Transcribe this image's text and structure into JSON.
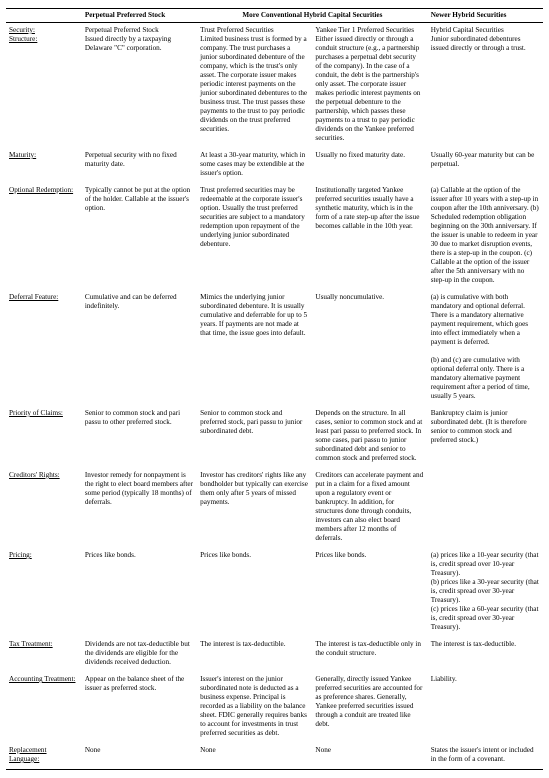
{
  "header": {
    "col1_label": "",
    "col2_label": "Perpetual Preferred Stock",
    "group_label": "More Conventional Hybrid Capital Securities",
    "col5_label": "Newer Hybrid Securities"
  },
  "rows": [
    {
      "label_a": "Security:",
      "label_b": "Structure:",
      "c1": "Perpetual Preferred Stock\nIssued directly by a taxpaying Delaware \"C\" corporation.",
      "c2": "Trust Preferred Securities\nLimited business trust is formed by a company. The trust purchases a junior subordinated debenture of the company, which is the trust's only asset. The corporate issuer makes periodic interest payments on the junior subordinated debentures to the business trust. The trust passes these payments to the trust to pay periodic dividends on the trust preferred securities.",
      "c3": "Yankee Tier 1 Preferred Securities\nEither issued directly or through a conduit structure (e.g., a partnership purchases a perpetual debt security of the company). In the case of a conduit, the debt is the partnership's only asset. The corporate issuer makes periodic interest payments on the perpetual debenture to the partnership, which passes these payments to a trust to pay periodic dividends on the Yankee preferred securities.",
      "c4": "Hybrid Capital Securities\nJunior subordinated debentures issued directly or through a trust."
    },
    {
      "label_a": "Maturity:",
      "c1": "Perpetual security with no fixed maturity date.",
      "c2": "At least a 30-year maturity, which in some cases may be extendible at the issuer's option.",
      "c3": "Usually no fixed maturity date.",
      "c4": "Usually 60-year maturity but can be perpetual."
    },
    {
      "label_a": "Optional Redemption:",
      "c1": "Typically cannot be put at the option of the holder. Callable at the issuer's option.",
      "c2": "Trust preferred securities may be redeemable at the corporate issuer's option. Usually the trust preferred securities are subject to a mandatory redemption upon repayment of the underlying junior subordinated debenture.",
      "c3": "Institutionally targeted Yankee preferred securities usually have a synthetic maturity, which is in the form of a rate step-up after the issue becomes callable in the 10th year.",
      "c4": "(a) Callable at the option of the issuer after 10 years with a step-up in coupon after the 10th anniversary. (b) Scheduled redemption obligation beginning on the 30th anniversary. If the issuer is unable to redeem in year 30 due to market disruption events, there is a step-up in the coupon. (c) Callable at the option of the issuer after the 5th anniversary with no step-up in the coupon."
    },
    {
      "label_a": "Deferral Feature:",
      "c1": "Cumulative and can be deferred indefinitely.",
      "c2": "Mimics the underlying junior subordinated debenture. It is usually cumulative and deferrable for up to 5 years. If payments are not made at that time, the issue goes into default.",
      "c3": "Usually noncumulative.",
      "c4": "(a) is cumulative with both mandatory and optional deferral. There is a mandatory alternative payment requirement, which goes into effect immediately when a payment is deferred.\n\n(b) and (c) are cumulative with optional deferral only. There is a mandatory alternative payment requirement after a period of time, usually 5 years."
    },
    {
      "label_a": "Priority of Claims:",
      "c1": "Senior to common stock and pari passu to other preferred stock.",
      "c2": "Senior to common stock and preferred stock, pari passu to junior subordinated debt.",
      "c3": "Depends on the structure. In all cases, senior to common stock and at least pari passu to preferred stock. In some cases, pari passu to junior subordinated debt and senior to common stock and preferred stock.",
      "c4": "Bankruptcy claim is junior subordinated debt. (It is therefore senior to common stock and preferred stock.)"
    },
    {
      "label_a": "Creditors' Rights:",
      "c1": "Investor remedy for nonpayment is the right to elect board members after some period (typically 18 months) of deferrals.",
      "c2": "Investor has creditors' rights like any bondholder but typically can exercise them only after 5 years of missed payments.",
      "c3": "Creditors can accelerate payment and put in a claim for a fixed amount upon a regulatory event or bankruptcy. In addition, for structures done through conduits, investors can also elect board members after 12 months of deferrals.",
      "c4": ""
    },
    {
      "label_a": "Pricing:",
      "c1": "Prices like bonds.",
      "c2": "Prices like bonds.",
      "c3": "Prices like bonds.",
      "c4": "(a) prices like a 10-year security (that is, credit spread over 10-year Treasury).\n(b) prices like a 30-year security (that is, credit spread over 30-year Treasury).\n(c) prices like a 60-year security (that is, credit spread over 30-year Treasury)."
    },
    {
      "label_a": "Tax Treatment:",
      "c1": "Dividends are not tax‑deductible but the dividends are eligible for the dividends received deduction.",
      "c2": "The interest is tax‑deductible.",
      "c3": "The interest is tax‑deductible only in the conduit structure.",
      "c4": "The interest is tax‑deductible."
    },
    {
      "label_a": "Accounting Treatment:",
      "c1": "Appear on the balance sheet of the issuer as preferred stock.",
      "c2": "Issuer's interest on the junior subordinated note is deducted as a business expense. Principal is recorded as a liability on the balance sheet. FDIC generally requires banks to account for investments in trust preferred securities as debt.",
      "c3": "Generally, directly issued Yankee preferred securities are accounted for as preference shares. Generally, Yankee preferred securities issued through a conduit are treated like debt.",
      "c4": "Liability."
    },
    {
      "label_a": "Replacement Language:",
      "c1": "None",
      "c2": "None",
      "c3": "None",
      "c4": "States the issuer's intent or included in the form of a covenant."
    }
  ]
}
